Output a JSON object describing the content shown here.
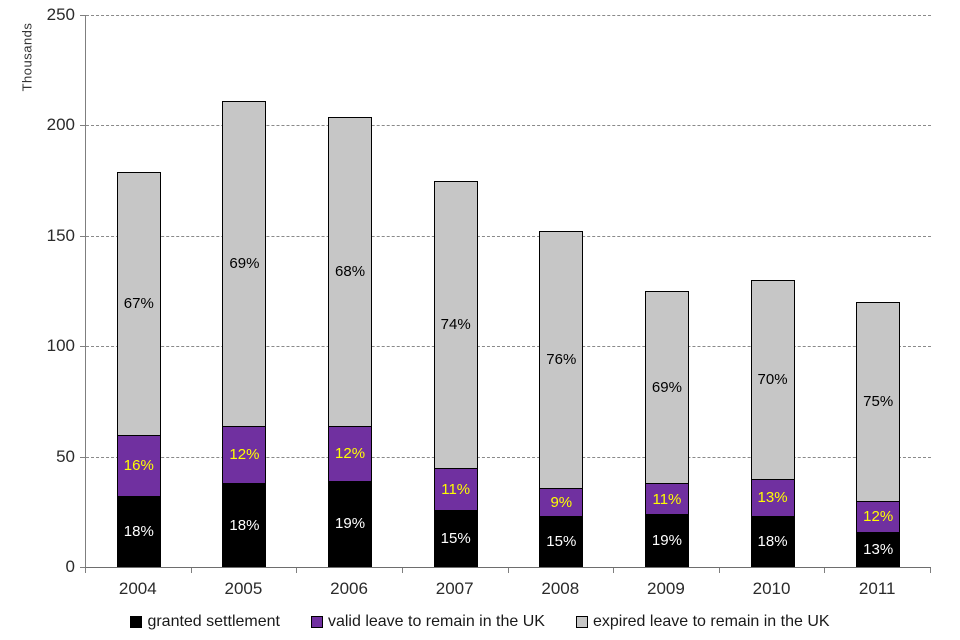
{
  "chart_data": {
    "type": "bar",
    "variant": "stacked",
    "title": "",
    "ylabel": "Thousands",
    "xlabel": "",
    "ylim": [
      0,
      250
    ],
    "yticks": [
      0,
      50,
      100,
      150,
      200,
      250
    ],
    "grid": "horizontal-dashed",
    "legend_position": "bottom",
    "categories": [
      "2004",
      "2005",
      "2006",
      "2007",
      "2008",
      "2009",
      "2010",
      "2011"
    ],
    "series": [
      {
        "name": "granted settlement",
        "color": "#000000",
        "label_color": "#ffffff",
        "values": [
          32,
          38,
          39,
          26,
          23,
          24,
          23,
          16
        ],
        "labels": [
          "18%",
          "18%",
          "19%",
          "15%",
          "15%",
          "19%",
          "18%",
          "13%"
        ]
      },
      {
        "name": "valid leave to remain in the UK",
        "color": "#7030a0",
        "label_color": "#ffff00",
        "values": [
          28,
          26,
          25,
          19,
          13,
          14,
          17,
          14
        ],
        "labels": [
          "16%",
          "12%",
          "12%",
          "11%",
          "9%",
          "11%",
          "13%",
          "12%"
        ]
      },
      {
        "name": "expired leave to remain in the UK",
        "color": "#c6c6c6",
        "label_color": "#000000",
        "values": [
          119,
          147,
          140,
          130,
          116,
          87,
          90,
          90
        ],
        "labels": [
          "67%",
          "69%",
          "68%",
          "74%",
          "76%",
          "69%",
          "70%",
          "75%"
        ]
      }
    ],
    "totals": [
      179,
      211,
      204,
      175,
      152,
      125,
      130,
      120
    ]
  }
}
